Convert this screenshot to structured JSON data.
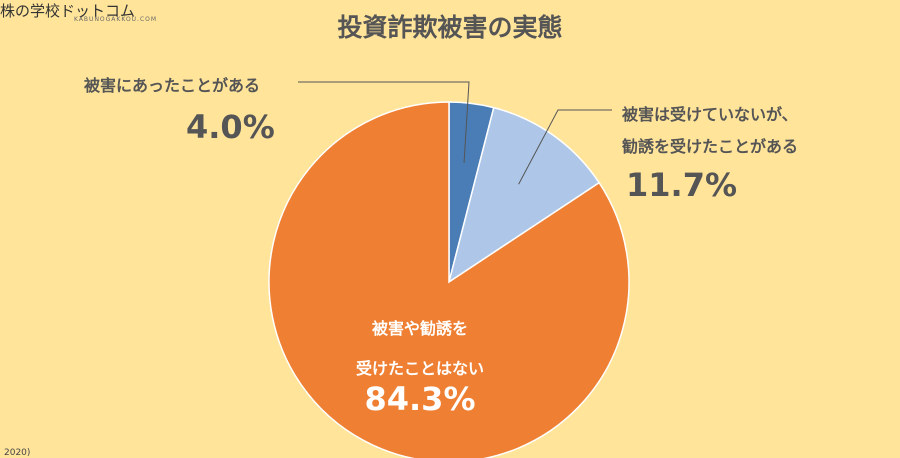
{
  "logo": {
    "text": "株の学校ドットコム",
    "subtext": "KABUNOGAKKOU.COM"
  },
  "chart_data": {
    "type": "pie",
    "title": "投資詐欺被害の実態",
    "slices": [
      {
        "label_lines": [
          "被害にあったことがある"
        ],
        "value": 4.0,
        "value_label": "4.0%",
        "color": "#4A7DB5"
      },
      {
        "label_lines": [
          "被害は受けていないが、",
          "勧誘を受けたことがある"
        ],
        "value": 11.7,
        "value_label": "11.7%",
        "color": "#AEC7E8"
      },
      {
        "label_lines": [
          "被害や勧誘を",
          "受けたことはない"
        ],
        "value": 84.3,
        "value_label": "84.3%",
        "color": "#EE7F33"
      }
    ]
  },
  "source_fragment": "2020)"
}
